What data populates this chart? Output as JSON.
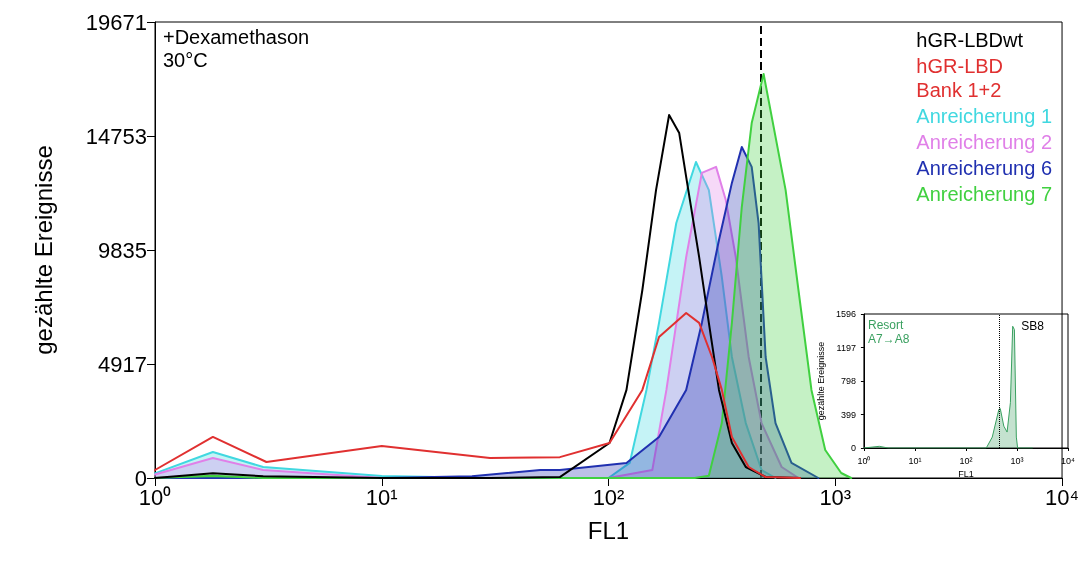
{
  "chart_data": [
    {
      "type": "line",
      "xlabel": "FL1",
      "ylabel": "gezählte Ereignisse",
      "log": "x",
      "xlim": [
        1,
        10000
      ],
      "ylim": [
        0,
        19671
      ],
      "xticks": [
        {
          "value": 1,
          "label": "10⁰"
        },
        {
          "value": 10,
          "label": "10¹"
        },
        {
          "value": 100,
          "label": "10²"
        },
        {
          "value": 1000,
          "label": "10³"
        },
        {
          "value": 10000,
          "label": "10⁴"
        }
      ],
      "yticks": [
        0,
        4917,
        9835,
        14753,
        19671
      ],
      "grid": false,
      "legend": "top right",
      "marker": "none",
      "line_style": "solid",
      "annotations": [
        "+Dexamethason",
        "30°C"
      ],
      "ref_lines": [
        {
          "axis": "x",
          "value": 470,
          "color": "#000000",
          "line_style": "dashed"
        }
      ],
      "series": [
        {
          "name": "hGR-LBDwt",
          "color": "#000000",
          "x": [
            1,
            1.8,
            3,
            10,
            30,
            61,
            101,
            120,
            141,
            162,
            185,
            205,
            220,
            251,
            277,
            307,
            350,
            403,
            493,
            700
          ],
          "values": [
            0,
            200,
            80,
            0,
            0,
            40,
            1510,
            3800,
            8110,
            12420,
            15660,
            14880,
            12990,
            9530,
            6690,
            3800,
            1510,
            475,
            43,
            0
          ]
        },
        {
          "name": "hGR-LBD\nBank 1+2",
          "color": "#e03030",
          "x": [
            1,
            1.8,
            3.1,
            10,
            30,
            61,
            101,
            141,
            167,
            220,
            251,
            286,
            316,
            350,
            415,
            493,
            700
          ],
          "values": [
            345,
            1770,
            690,
            1380,
            860,
            900,
            1510,
            3800,
            6080,
            7120,
            6690,
            5220,
            3800,
            1770,
            475,
            40,
            0
          ]
        },
        {
          "name": "Anreicherung 1",
          "color": "#40d8e0",
          "type": "area",
          "x": [
            1,
            1.8,
            3,
            10,
            30,
            100,
            124,
            147,
            167,
            199,
            243,
            277,
            316,
            350,
            403,
            473,
            545
          ],
          "values": [
            200,
            1120,
            475,
            86,
            0,
            0,
            650,
            3800,
            6690,
            11000,
            13630,
            12420,
            8670,
            5220,
            2370,
            345,
            0
          ]
        },
        {
          "name": "Anreicherung 2",
          "color": "#e080e8",
          "type": "area",
          "x": [
            1,
            1.8,
            3,
            10,
            30,
            100,
            156,
            180,
            220,
            258,
            298,
            329,
            364,
            415,
            473,
            580,
            688
          ],
          "values": [
            150,
            860,
            345,
            0,
            0,
            0,
            345,
            3800,
            9530,
            13160,
            13420,
            11990,
            9530,
            5220,
            2370,
            475,
            0
          ]
        },
        {
          "name": "Anreicherung 6",
          "color": "#2030b0",
          "type": "area",
          "x": [
            1,
            10,
            25,
            50,
            61,
            120,
            167,
            220,
            258,
            307,
            350,
            387,
            428,
            459,
            493,
            545,
            641,
            842
          ],
          "values": [
            0,
            0,
            80,
            345,
            345,
            650,
            1770,
            3800,
            6690,
            10270,
            12730,
            14280,
            13420,
            11000,
            5220,
            2370,
            650,
            0
          ]
        },
        {
          "name": "Anreicherung 7",
          "color": "#40d040",
          "type": "area",
          "x": [
            1,
            1.8,
            3,
            100,
            240,
            277,
            316,
            350,
            387,
            428,
            483,
            604,
            688,
            785,
            903,
            1062,
            1175
          ],
          "values": [
            0,
            100,
            0,
            0,
            0,
            100,
            2370,
            6690,
            11690,
            15310,
            17430,
            12420,
            8110,
            3800,
            1210,
            215,
            0
          ]
        }
      ]
    },
    {
      "type": "area",
      "xlabel": "FL1",
      "ylabel": "gezählte Ereignisse",
      "log": "x",
      "xlim": [
        1,
        10000
      ],
      "ylim": [
        0,
        1596
      ],
      "xticks": [
        {
          "value": 1,
          "label": "10⁰"
        },
        {
          "value": 10,
          "label": "10¹"
        },
        {
          "value": 100,
          "label": "10²"
        },
        {
          "value": 1000,
          "label": "10³"
        },
        {
          "value": 10000,
          "label": "10⁴"
        }
      ],
      "yticks": [
        0,
        399,
        798,
        1197,
        1596
      ],
      "grid": false,
      "legend": false,
      "marker": "none",
      "annotations": [
        "Resort",
        "A7→A8",
        {
          "text": "SB8",
          "x": 900,
          "y": 1450
        }
      ],
      "ref_lines": [
        {
          "axis": "x",
          "value": 450,
          "color": "#000000",
          "line_style": "dotted"
        }
      ],
      "series": [
        {
          "color": "#3aa060",
          "x": [
            1,
            2,
            3,
            200,
            250,
            328,
            442,
            470,
            552,
            640,
            743,
            824,
            890,
            971,
            1030,
            2000
          ],
          "values": [
            0,
            20,
            0,
            0,
            0,
            130,
            460,
            470,
            260,
            190,
            540,
            1450,
            1410,
            130,
            0,
            0
          ]
        }
      ]
    }
  ]
}
